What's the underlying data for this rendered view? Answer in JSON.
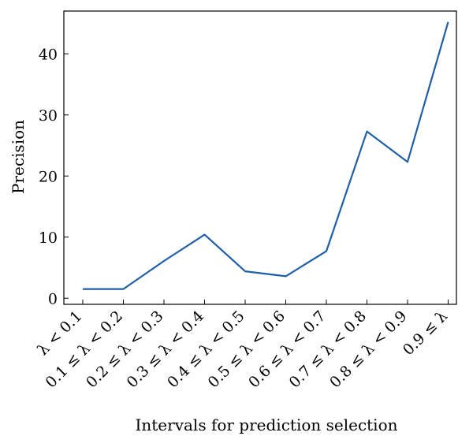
{
  "chart_data": {
    "type": "line",
    "title": "",
    "xlabel": "Intervals for prediction selection",
    "ylabel": "Precision",
    "categories": [
      "λ < 0.1",
      "0.1 ≤ λ < 0.2",
      "0.2 ≤ λ < 0.3",
      "0.3 ≤ λ < 0.4",
      "0.4 ≤ λ < 0.5",
      "0.5 ≤ λ < 0.6",
      "0.6 ≤ λ < 0.7",
      "0.7 ≤ λ < 0.8",
      "0.8 ≤ λ < 0.9",
      "0.9 ≤ λ"
    ],
    "values": [
      1.5,
      1.5,
      6.1,
      10.4,
      4.4,
      3.6,
      7.7,
      27.3,
      22.3,
      45.2
    ],
    "ylim": [
      -1,
      47
    ],
    "yticks": [
      0,
      10,
      20,
      30,
      40
    ],
    "grid": false,
    "line_color": "#1f5fa6"
  }
}
